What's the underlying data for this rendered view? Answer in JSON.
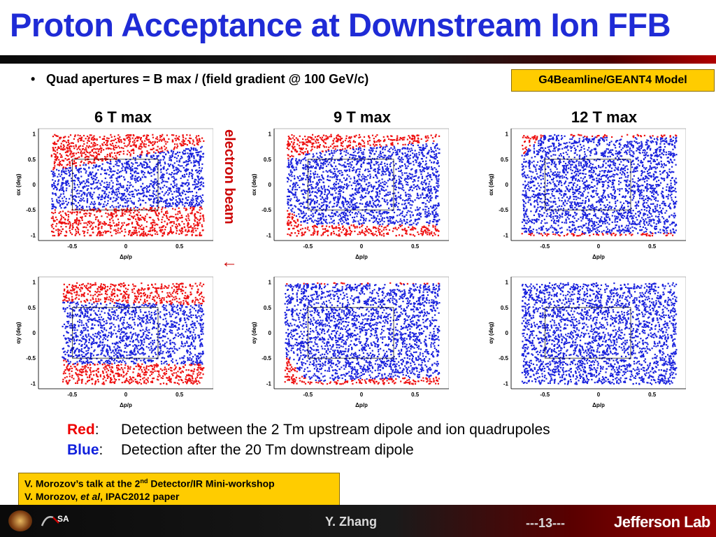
{
  "title": "Proton Acceptance at Downstream Ion FFB",
  "bullet": "Quad apertures = B max / (field gradient @ 100 GeV/c)",
  "model_badge": "G4Beamline/GEANT4 Model",
  "columns": [
    "6 T max",
    "9 T max",
    "12 T max"
  ],
  "beam_label": "electron beam",
  "beam_arrow": "←",
  "plot_axes": {
    "xlabel": "Δp/p",
    "ylabel_top": "αx (deg)",
    "ylabel_bottom": "αy (deg)",
    "xticks": [
      "-0.5",
      "0",
      "0.5"
    ],
    "yticks": [
      "1",
      "0.5",
      "0",
      "-0.5",
      "-1"
    ],
    "xlim": [
      -0.75,
      0.75
    ],
    "ylim": [
      -1.05,
      1.05
    ]
  },
  "colors": {
    "red": "#ee1111",
    "blue": "#1a22dd"
  },
  "legend": {
    "red_key": "Red",
    "red_desc": "Detection between the 2 Tm upstream dipole and ion quadrupoles",
    "blue_key": "Blue",
    "blue_desc": "Detection after the 20 Tm downstream dipole"
  },
  "reference": {
    "line1_pre": "V. Morozov’s talk at the 2",
    "line1_sup": "nd",
    "line1_post": " Detector/IR Mini-workshop",
    "line2_pre": "V. Morozov, ",
    "line2_em": "et al",
    "line2_post": ", IPAC2012 paper"
  },
  "footer": {
    "author": "Y. Zhang",
    "page": "---13---",
    "lab": "Jefferson Lab"
  }
}
